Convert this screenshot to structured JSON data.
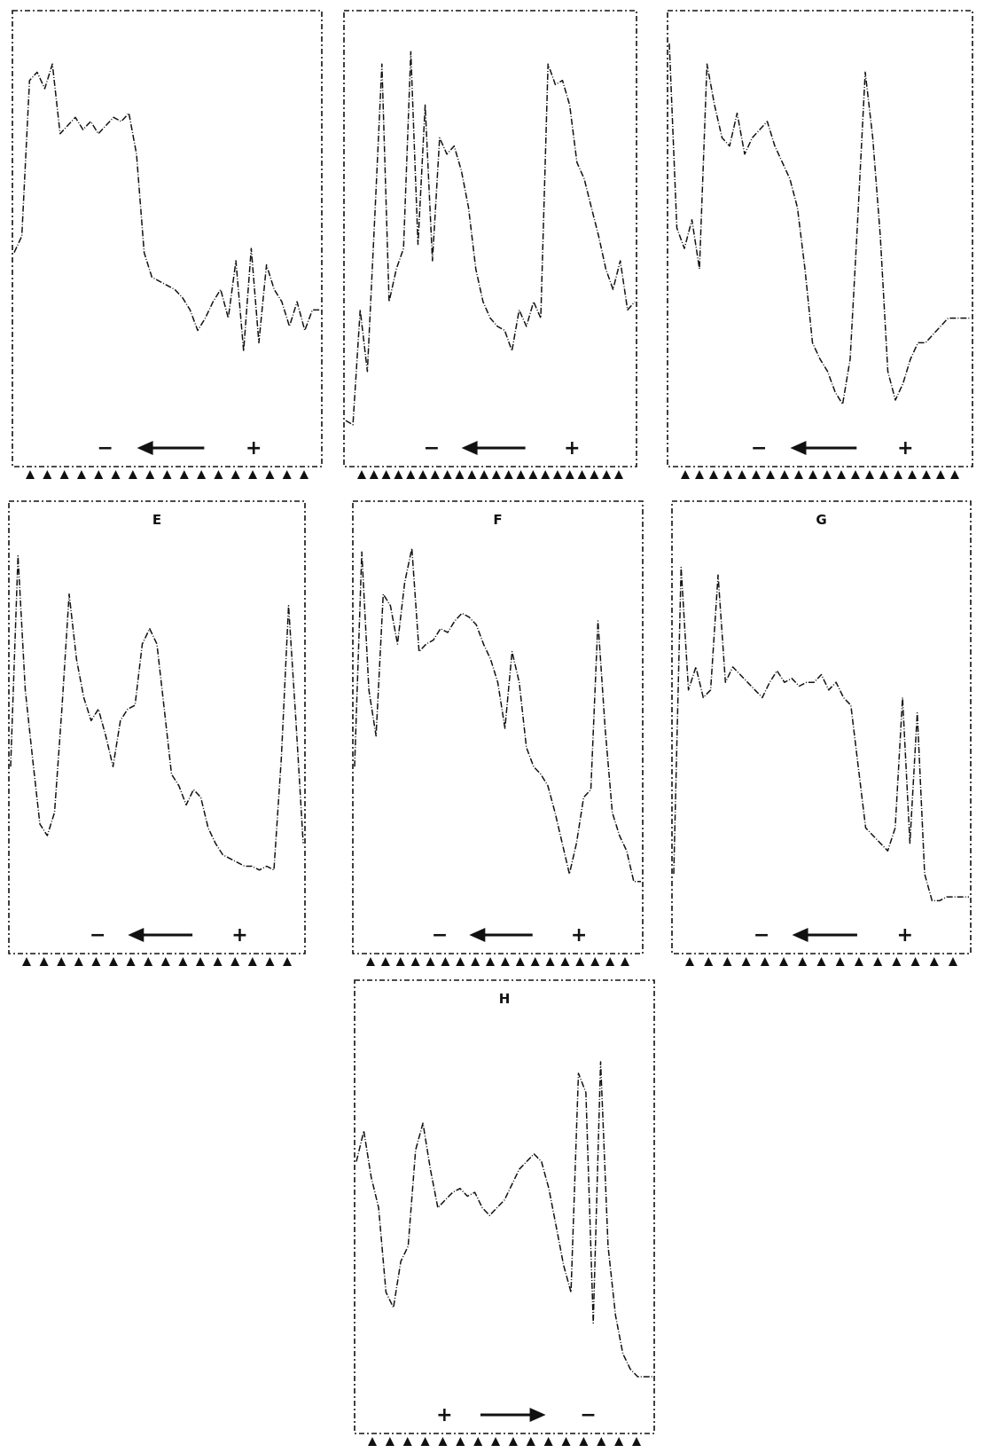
{
  "figure": {
    "background": "#ffffff",
    "ink": "#111111"
  },
  "chart_data": [
    {
      "type": "line",
      "title": "",
      "direction": "left",
      "left_sign": "−",
      "right_sign": "+",
      "peak_markers": 17,
      "series": [
        {
          "y": [
            0.44,
            0.48,
            0.86,
            0.88,
            0.84,
            0.9,
            0.73,
            0.75,
            0.77,
            0.74,
            0.76,
            0.73,
            0.75,
            0.77,
            0.76,
            0.78,
            0.68,
            0.44,
            0.38,
            0.37,
            0.36,
            0.35,
            0.33,
            0.3,
            0.25,
            0.28,
            0.32,
            0.35,
            0.28,
            0.42,
            0.2,
            0.45,
            0.22,
            0.41,
            0.35,
            0.32,
            0.26,
            0.32,
            0.25,
            0.3,
            0.3
          ]
        }
      ]
    },
    {
      "type": "line",
      "title": "",
      "direction": "left",
      "left_sign": "−",
      "right_sign": "+",
      "peak_markers": 22,
      "series": [
        {
          "y": [
            0.03,
            0.02,
            0.3,
            0.15,
            0.52,
            0.9,
            0.32,
            0.4,
            0.45,
            0.93,
            0.46,
            0.8,
            0.42,
            0.72,
            0.68,
            0.7,
            0.64,
            0.55,
            0.4,
            0.32,
            0.28,
            0.26,
            0.25,
            0.2,
            0.3,
            0.26,
            0.32,
            0.28,
            0.9,
            0.85,
            0.86,
            0.8,
            0.66,
            0.62,
            0.55,
            0.48,
            0.4,
            0.35,
            0.42,
            0.3,
            0.32
          ]
        }
      ]
    },
    {
      "type": "line",
      "title": "",
      "direction": "left",
      "left_sign": "−",
      "right_sign": "+",
      "peak_markers": 20,
      "series": [
        {
          "y": [
            0.95,
            0.5,
            0.45,
            0.52,
            0.4,
            0.9,
            0.8,
            0.72,
            0.7,
            0.78,
            0.68,
            0.72,
            0.74,
            0.76,
            0.7,
            0.66,
            0.62,
            0.55,
            0.4,
            0.22,
            0.18,
            0.15,
            0.1,
            0.07,
            0.18,
            0.52,
            0.88,
            0.72,
            0.48,
            0.15,
            0.08,
            0.12,
            0.18,
            0.22,
            0.22,
            0.24,
            0.26,
            0.28,
            0.28,
            0.28,
            0.28
          ]
        }
      ]
    },
    {
      "type": "line",
      "title": "E",
      "direction": "left",
      "left_sign": "−",
      "right_sign": "+",
      "peak_markers": 16,
      "series": [
        {
          "y": [
            0.4,
            0.95,
            0.6,
            0.42,
            0.25,
            0.22,
            0.28,
            0.55,
            0.85,
            0.68,
            0.58,
            0.52,
            0.55,
            0.48,
            0.4,
            0.52,
            0.55,
            0.56,
            0.72,
            0.76,
            0.72,
            0.55,
            0.38,
            0.35,
            0.3,
            0.34,
            0.32,
            0.24,
            0.2,
            0.17,
            0.16,
            0.15,
            0.14,
            0.14,
            0.13,
            0.14,
            0.13,
            0.42,
            0.82,
            0.52,
            0.2
          ]
        }
      ]
    },
    {
      "type": "line",
      "title": "F",
      "direction": "left",
      "left_sign": "−",
      "right_sign": "+",
      "peak_markers": 18,
      "series": [
        {
          "y": [
            0.4,
            0.96,
            0.6,
            0.48,
            0.85,
            0.82,
            0.72,
            0.88,
            0.97,
            0.7,
            0.72,
            0.73,
            0.76,
            0.75,
            0.78,
            0.8,
            0.79,
            0.77,
            0.72,
            0.68,
            0.62,
            0.5,
            0.7,
            0.62,
            0.45,
            0.4,
            0.38,
            0.35,
            0.28,
            0.2,
            0.12,
            0.2,
            0.32,
            0.34,
            0.78,
            0.5,
            0.28,
            0.22,
            0.18,
            0.1,
            0.1
          ]
        }
      ]
    },
    {
      "type": "line",
      "title": "G",
      "direction": "left",
      "left_sign": "−",
      "right_sign": "+",
      "peak_markers": 15,
      "series": [
        {
          "y": [
            0.12,
            0.92,
            0.6,
            0.66,
            0.58,
            0.6,
            0.9,
            0.62,
            0.66,
            0.64,
            0.62,
            0.6,
            0.58,
            0.62,
            0.65,
            0.62,
            0.63,
            0.61,
            0.62,
            0.62,
            0.64,
            0.6,
            0.62,
            0.58,
            0.56,
            0.4,
            0.24,
            0.22,
            0.2,
            0.18,
            0.24,
            0.58,
            0.2,
            0.54,
            0.12,
            0.05,
            0.05,
            0.06,
            0.06,
            0.06,
            0.06
          ]
        }
      ]
    },
    {
      "type": "line",
      "title": "H",
      "direction": "right",
      "left_sign": "+",
      "right_sign": "−",
      "peak_markers": 16,
      "series": [
        {
          "y": [
            0.62,
            0.7,
            0.58,
            0.5,
            0.28,
            0.24,
            0.36,
            0.4,
            0.65,
            0.72,
            0.6,
            0.5,
            0.52,
            0.54,
            0.55,
            0.53,
            0.54,
            0.5,
            0.48,
            0.5,
            0.52,
            0.56,
            0.6,
            0.62,
            0.64,
            0.62,
            0.55,
            0.45,
            0.35,
            0.28,
            0.85,
            0.8,
            0.2,
            0.88,
            0.4,
            0.22,
            0.12,
            0.08,
            0.06,
            0.06,
            0.06
          ]
        }
      ]
    }
  ]
}
